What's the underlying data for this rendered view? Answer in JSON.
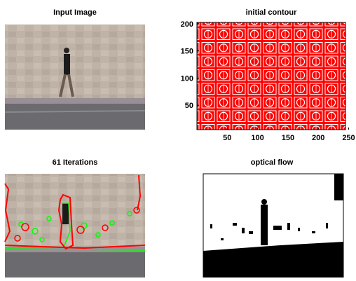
{
  "panels": [
    {
      "title": "Input Image"
    },
    {
      "title": "initial contour",
      "xticks": [
        50,
        100,
        150,
        200,
        250
      ],
      "yticks": [
        50,
        100,
        150,
        200
      ]
    },
    {
      "title": "61 Iterations"
    },
    {
      "title": "optical flow"
    }
  ]
}
